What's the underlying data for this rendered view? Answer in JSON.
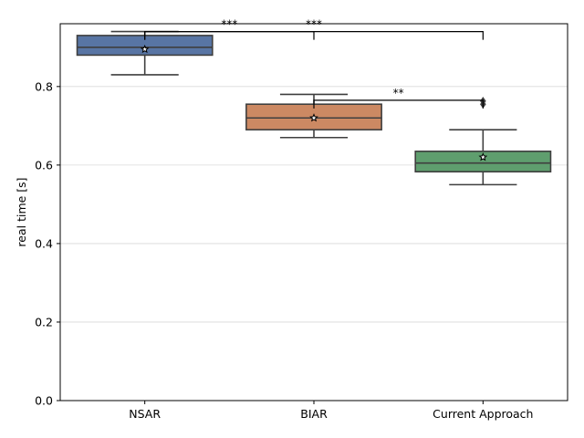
{
  "chart_data": {
    "type": "box",
    "ylabel": "real time [s]",
    "xlabel": "",
    "ylim": [
      0,
      0.96
    ],
    "yticks": [
      0.0,
      0.2,
      0.4,
      0.6,
      0.8
    ],
    "ytick_labels": [
      "0.0",
      "0.2",
      "0.4",
      "0.6",
      "0.8"
    ],
    "grid": "horizontal",
    "categories": [
      "NSAR",
      "BIAR",
      "Current Approach"
    ],
    "boxes": [
      {
        "category": "NSAR",
        "whisker_low": 0.83,
        "q1": 0.88,
        "median": 0.9,
        "q3": 0.93,
        "whisker_high": 0.94,
        "mean": 0.895,
        "outliers": [],
        "color": "#5875a4"
      },
      {
        "category": "BIAR",
        "whisker_low": 0.67,
        "q1": 0.69,
        "median": 0.72,
        "q3": 0.755,
        "whisker_high": 0.78,
        "mean": 0.72,
        "outliers": [],
        "color": "#cc8963"
      },
      {
        "category": "Current Approach",
        "whisker_low": 0.55,
        "q1": 0.583,
        "median": 0.605,
        "q3": 0.635,
        "whisker_high": 0.69,
        "mean": 0.62,
        "outliers": [
          0.755,
          0.763
        ],
        "color": "#5f9e6e"
      }
    ],
    "significance": [
      {
        "from": 0,
        "to": 1,
        "label": "***",
        "y": 0.94
      },
      {
        "from": 0,
        "to": 2,
        "label": "***",
        "y": 0.94
      },
      {
        "from": 1,
        "to": 2,
        "label": "**",
        "y": 0.765
      }
    ]
  }
}
